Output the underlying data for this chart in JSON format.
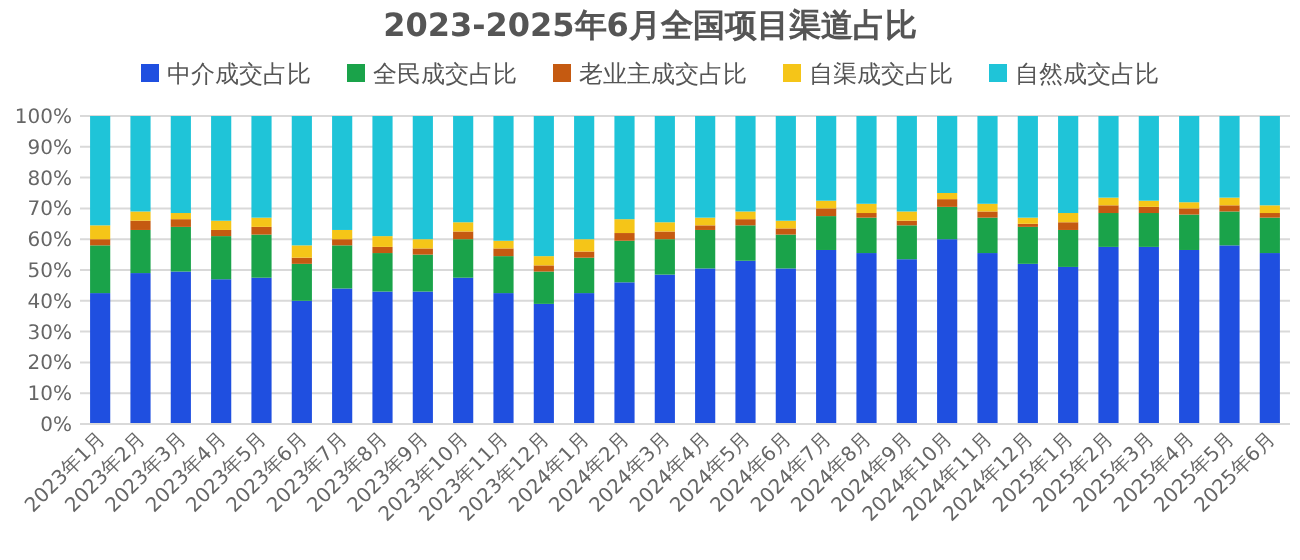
{
  "chart_data": {
    "type": "bar",
    "stacked": true,
    "title": "2023-2025年6月全国项目渠道占比",
    "categories": [
      "2023年1月",
      "2023年2月",
      "2023年3月",
      "2023年4月",
      "2023年5月",
      "2023年6月",
      "2023年7月",
      "2023年8月",
      "2023年9月",
      "2023年10月",
      "2023年11月",
      "2023年12月",
      "2024年1月",
      "2024年2月",
      "2024年3月",
      "2024年4月",
      "2024年5月",
      "2024年6月",
      "2024年7月",
      "2024年8月",
      "2024年9月",
      "2024年10月",
      "2024年11月",
      "2024年12月",
      "2025年1月",
      "2025年2月",
      "2025年3月",
      "2025年4月",
      "2025年5月",
      "2025年6月"
    ],
    "series": [
      {
        "name": "中介成交占比",
        "color": "#1f4fe0",
        "values": [
          42.5,
          49,
          49.5,
          47,
          47.5,
          40,
          44,
          43,
          43,
          47.5,
          42.5,
          39,
          42.5,
          46,
          48.5,
          50.5,
          53,
          50.5,
          56.5,
          55.5,
          53.5,
          60,
          55.5,
          52,
          51,
          57.5,
          57.5,
          56.5,
          58,
          55.5
        ]
      },
      {
        "name": "全民成交占比",
        "color": "#1aa34a",
        "values": [
          15.5,
          14,
          14.5,
          14,
          14,
          12,
          14,
          12.5,
          12,
          12.5,
          12,
          10.5,
          11.5,
          13.5,
          11.5,
          12.5,
          11.5,
          11,
          11,
          11.5,
          11,
          10.5,
          11.5,
          12,
          12,
          11,
          11,
          11.5,
          11,
          11.5
        ]
      },
      {
        "name": "老业主成交占比",
        "color": "#c55a11",
        "values": [
          2,
          3,
          2.5,
          2,
          2.5,
          2,
          2,
          2,
          2,
          2.5,
          2.5,
          2,
          2,
          2.5,
          2.5,
          1.5,
          2,
          2,
          2.5,
          1.5,
          1.5,
          2.5,
          2,
          1,
          2.5,
          2.5,
          2,
          2,
          2,
          1.5
        ]
      },
      {
        "name": "自渠成交占比",
        "color": "#f5c518",
        "values": [
          4.5,
          3,
          2,
          3,
          3,
          4,
          3,
          3.5,
          3,
          3,
          2.5,
          3,
          4,
          4.5,
          3,
          2.5,
          2.5,
          2.5,
          2.5,
          3,
          3,
          2,
          2.5,
          2,
          3,
          2.5,
          2,
          2,
          2.5,
          2.5
        ]
      },
      {
        "name": "自然成交占比",
        "color": "#1fc4d8",
        "values": [
          35.5,
          31,
          31.5,
          34,
          33,
          42,
          37,
          39,
          40,
          34.5,
          40.5,
          45.5,
          40,
          33.5,
          34.5,
          33,
          31,
          34,
          27.5,
          28.5,
          31,
          25,
          28.5,
          33,
          31.5,
          26.5,
          27.5,
          28,
          26.5,
          29
        ]
      }
    ],
    "ylim": [
      0,
      100
    ],
    "yticks": [
      {
        "value": 0,
        "label": "0%"
      },
      {
        "value": 10,
        "label": "10%"
      },
      {
        "value": 20,
        "label": "20%"
      },
      {
        "value": 30,
        "label": "30%"
      },
      {
        "value": 40,
        "label": "40%"
      },
      {
        "value": 50,
        "label": "50%"
      },
      {
        "value": 60,
        "label": "60%"
      },
      {
        "value": 70,
        "label": "70%"
      },
      {
        "value": 80,
        "label": "80%"
      },
      {
        "value": 90,
        "label": "90%"
      },
      {
        "value": 100,
        "label": "100%"
      }
    ],
    "grid": "y",
    "legend": "top"
  }
}
